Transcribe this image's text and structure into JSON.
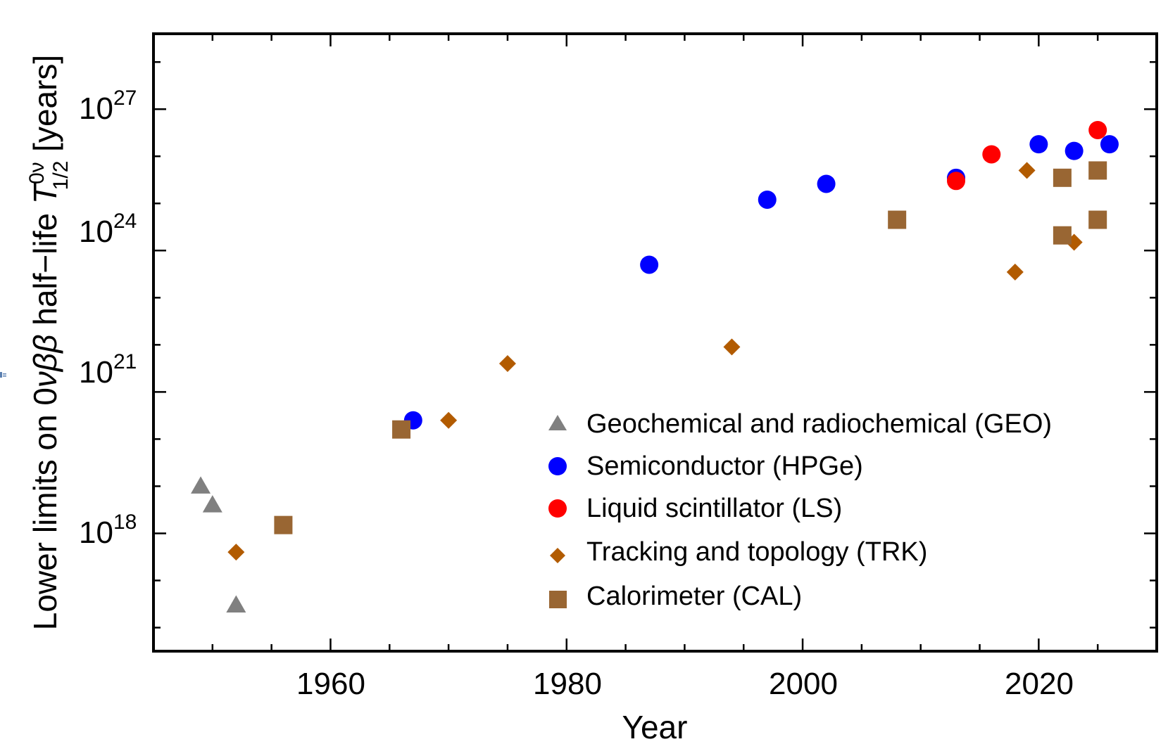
{
  "chart_data": {
    "type": "scatter",
    "xlabel": "Year",
    "ylabel_parts": {
      "prefix": "Lower limits on 0",
      "nu": "ν",
      "beta": "ββ",
      "middle": " half−life ",
      "T": "T",
      "sup": "0ν",
      "sub": "1/2",
      "suffix": " [years]"
    },
    "yscale": "log",
    "xlim": [
      1945,
      2030
    ],
    "ylim_exponent": [
      15.5,
      28.6
    ],
    "x_ticks": [
      1960,
      1980,
      2000,
      2020
    ],
    "x_tick_labels": [
      "1960",
      "1980",
      "2000",
      "2020"
    ],
    "y_ticks": [
      {
        "base": "10",
        "exp": "18",
        "value_exp": 18
      },
      {
        "base": "10",
        "exp": "21",
        "value_exp": 21
      },
      {
        "base": "10",
        "exp": "24",
        "value_exp": 24
      },
      {
        "base": "10",
        "exp": "27",
        "value_exp": 27
      }
    ],
    "legend_position": "bottom-right",
    "series": [
      {
        "key": "geo",
        "name": "Geochemical and radiochemical (GEO)",
        "marker": "triangle",
        "color": "#808080",
        "points": [
          {
            "x": 1949,
            "y": 1e+19
          },
          {
            "x": 1950,
            "y": 4e+18
          },
          {
            "x": 1952,
            "y": 3e+16
          }
        ]
      },
      {
        "key": "hpge",
        "name": "Semiconductor (HPGe)",
        "marker": "circle",
        "color": "#0000ff",
        "points": [
          {
            "x": 1967,
            "y": 2.5e+20
          },
          {
            "x": 1987,
            "y": 5e+23
          },
          {
            "x": 1997,
            "y": 1.2e+25
          },
          {
            "x": 2002,
            "y": 2.6e+25
          },
          {
            "x": 2013,
            "y": 3.5e+25
          },
          {
            "x": 2020,
            "y": 1.8e+26
          },
          {
            "x": 2023,
            "y": 1.3e+26
          },
          {
            "x": 2026,
            "y": 1.8e+26
          }
        ]
      },
      {
        "key": "ls",
        "name": "Liquid scintillator (LS)",
        "marker": "circle",
        "color": "#ff0000",
        "points": [
          {
            "x": 2013,
            "y": 3e+25
          },
          {
            "x": 2016,
            "y": 1.1e+26
          },
          {
            "x": 2025,
            "y": 3.6e+26
          }
        ]
      },
      {
        "key": "trk",
        "name": "Tracking and topology (TRK)",
        "marker": "diamond",
        "color": "#b25b00",
        "points": [
          {
            "x": 1952,
            "y": 4e+17
          },
          {
            "x": 1970,
            "y": 2.5e+20
          },
          {
            "x": 1975,
            "y": 4e+21
          },
          {
            "x": 1994,
            "y": 9e+21
          },
          {
            "x": 2018,
            "y": 3.5e+23
          },
          {
            "x": 2019,
            "y": 5e+25
          },
          {
            "x": 2023,
            "y": 1.5e+24
          }
        ]
      },
      {
        "key": "cal",
        "name": "Calorimeter (CAL)",
        "marker": "square",
        "color": "#996633",
        "points": [
          {
            "x": 1956,
            "y": 1.5e+18
          },
          {
            "x": 1966,
            "y": 1.6e+20
          },
          {
            "x": 2008,
            "y": 4.5e+24
          },
          {
            "x": 2022,
            "y": 3.5e+25
          },
          {
            "x": 2022,
            "y": 2.1e+24
          },
          {
            "x": 2025,
            "y": 5e+25
          },
          {
            "x": 2025,
            "y": 4.5e+24
          }
        ]
      }
    ]
  }
}
